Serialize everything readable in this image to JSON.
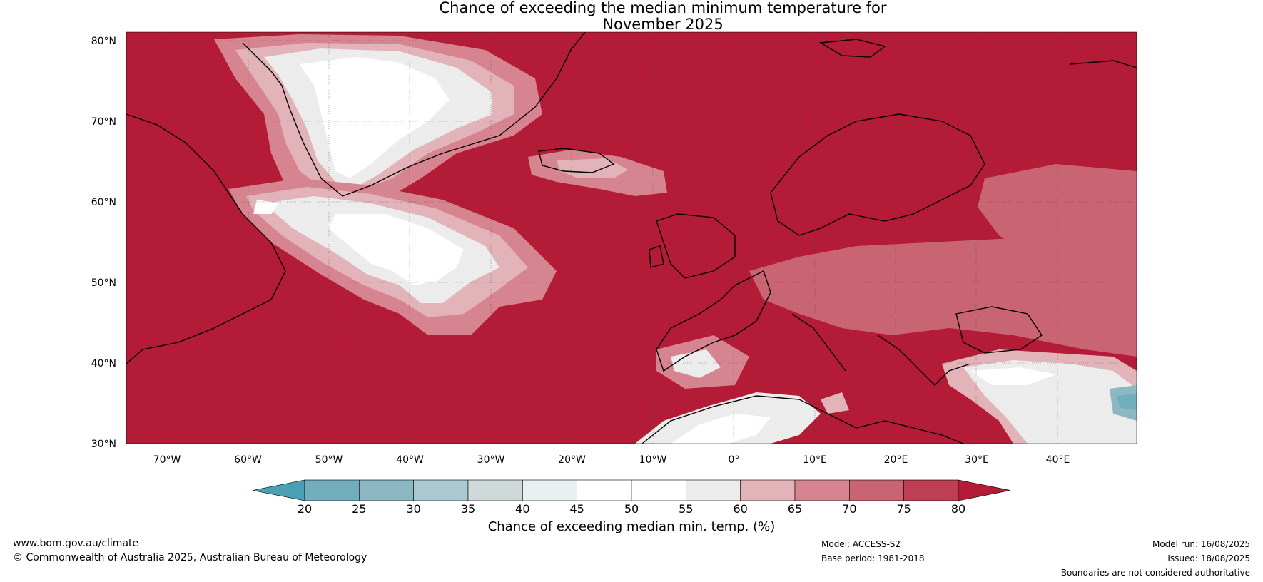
{
  "title": {
    "line1": "Chance of exceeding the median minimum temperature for",
    "line2": "November 2025"
  },
  "map": {
    "lat_labels": [
      "80°N",
      "70°N",
      "60°N",
      "50°N",
      "40°N",
      "30°N"
    ],
    "lon_labels": [
      "70°W",
      "60°W",
      "50°W",
      "40°W",
      "30°W",
      "20°W",
      "10°W",
      "0°",
      "10°E",
      "20°E",
      "30°E",
      "40°E"
    ],
    "dominant_color": "#b31b37"
  },
  "colorbar": {
    "ticks": [
      "20",
      "25",
      "30",
      "35",
      "40",
      "45",
      "50",
      "55",
      "60",
      "65",
      "70",
      "75",
      "80"
    ],
    "colors": [
      "#4a9fb2",
      "#71adbd",
      "#8cb8c3",
      "#a9c8cf",
      "#cfd9da",
      "#e8f0f1",
      "#ffffff",
      "#ffffff",
      "#ececec",
      "#e2b4ba",
      "#d6848f",
      "#c96472",
      "#bf3e52",
      "#b31b37"
    ],
    "label": "Chance of exceeding median min. temp. (%)"
  },
  "footer": {
    "website": "www.bom.gov.au/climate",
    "copyright": "© Commonwealth of Australia 2025, Australian Bureau of Meteorology",
    "model": "Model: ACCESS-S2",
    "base_period": "Base period: 1981-2018",
    "model_run": "Model run: 16/08/2025",
    "issued": "Issued: 18/08/2025",
    "disclaimer": "Boundaries are not considered authoritative"
  }
}
